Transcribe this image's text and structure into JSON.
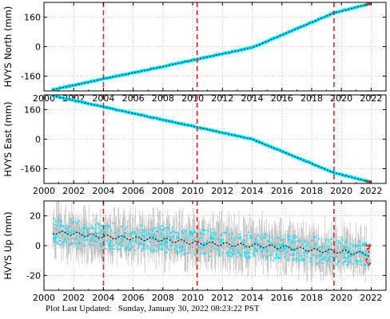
{
  "footer": {
    "label": "Plot Last Updated:",
    "timestamp": "Sunday, January 30, 2022 08:23:22 PST"
  },
  "colors": {
    "data": "#00e5ff",
    "error_bars": "#b4b4b4",
    "model": "#000000",
    "offset_lines": "#e8201e",
    "recent": "#e8201e"
  },
  "chart_data": [
    {
      "type": "scatter",
      "ylabel": "HVYS North (mm)",
      "xlim": [
        2000,
        2023
      ],
      "ylim": [
        -240,
        240
      ],
      "xticks": [
        2000,
        2002,
        2004,
        2006,
        2008,
        2010,
        2012,
        2014,
        2016,
        2018,
        2020,
        2022
      ],
      "yticks": [
        -160,
        0,
        160
      ],
      "series": [
        {
          "x": [
            2000.6,
            2004,
            2008,
            2010.3,
            2014,
            2019.5,
            2021.9
          ],
          "y": [
            -233,
            -175,
            -108,
            -68,
            -5,
            183,
            232
          ]
        }
      ],
      "offsets": [
        2004.0,
        2010.3,
        2019.5
      ],
      "grid": true
    },
    {
      "type": "scatter",
      "ylabel": "HVYS East (mm)",
      "xlim": [
        2000,
        2023
      ],
      "ylim": [
        -240,
        240
      ],
      "xticks": [
        2000,
        2002,
        2004,
        2006,
        2008,
        2010,
        2012,
        2014,
        2016,
        2018,
        2020,
        2022
      ],
      "yticks": [
        -160,
        0,
        160
      ],
      "series": [
        {
          "x": [
            2000.6,
            2004,
            2008,
            2010.3,
            2014,
            2019.5,
            2021.9
          ],
          "y": [
            235,
            175,
            105,
            65,
            0,
            -182,
            -232
          ]
        }
      ],
      "offsets": [
        2004.0,
        2010.3,
        2019.5
      ],
      "grid": true
    },
    {
      "type": "scatter",
      "ylabel": "HVYS Up (mm)",
      "xlim": [
        2000,
        2023
      ],
      "ylim": [
        -30,
        30
      ],
      "xticks": [
        2000,
        2002,
        2004,
        2006,
        2008,
        2010,
        2012,
        2014,
        2016,
        2018,
        2020,
        2022
      ],
      "yticks": [
        -20,
        0,
        20
      ],
      "series": [
        {
          "x": [
            2000.6,
            2002,
            2004,
            2006,
            2008,
            2010,
            2012,
            2014,
            2016,
            2018,
            2020,
            2021.9
          ],
          "y": [
            9,
            8,
            6,
            5,
            4,
            2,
            1,
            0,
            -1,
            -3,
            -4,
            -6
          ]
        }
      ],
      "offsets": [
        2004.0,
        2010.3,
        2019.5
      ],
      "grid": true
    }
  ]
}
